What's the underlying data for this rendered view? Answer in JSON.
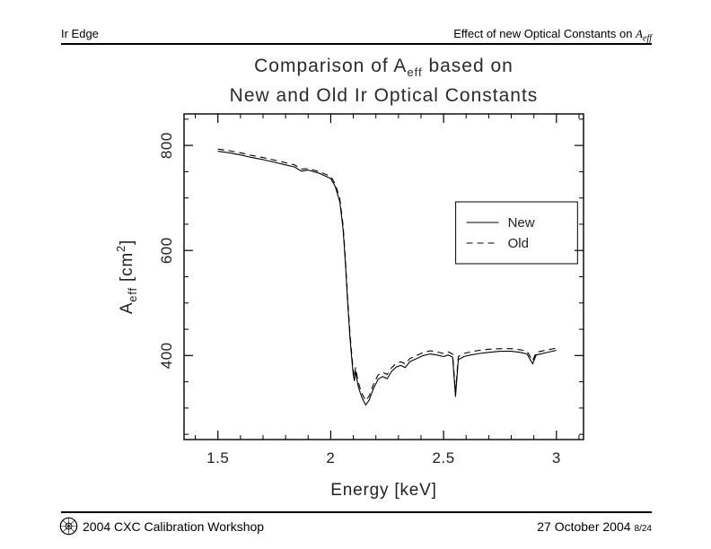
{
  "header": {
    "left": "Ir Edge",
    "right_text": "Effect of new Optical Constants on ",
    "right_math_base": "A",
    "right_math_sub": "eff"
  },
  "title": {
    "line1_pre": "Comparison of A",
    "line1_sub": "eff",
    "line1_post": " based on",
    "line2": "New and Old Ir Optical Constants"
  },
  "footer": {
    "logo_icon": "cxc-logo",
    "left_text": "2004 CXC Calibration Workshop",
    "date": "27 October 2004",
    "page_number": "8/24"
  },
  "chart_data": {
    "type": "line",
    "title": "Comparison of Aeff based on New and Old Ir Optical Constants",
    "xlabel": "Energy [keV]",
    "ylabel": "Aeff [cm2]",
    "ylabel_parts": {
      "base": "A",
      "sub": "eff",
      "mid": " [cm",
      "sup": "2",
      "close": "]"
    },
    "xlim": [
      1.35,
      3.12
    ],
    "ylim": [
      240,
      860
    ],
    "xticks": [
      1.5,
      2,
      2.5,
      3
    ],
    "xtick_labels": [
      "1.5",
      "2",
      "2.5",
      "3"
    ],
    "xminor_step": 0.1,
    "yticks": [
      400,
      600,
      800
    ],
    "ytick_labels": [
      "400",
      "600",
      "800"
    ],
    "yminor_step": 50,
    "grid": false,
    "line_color": "#000000",
    "legend": {
      "position": "upper-right",
      "entries": [
        {
          "label": "New",
          "style": "solid"
        },
        {
          "label": "Old",
          "style": "dashed"
        }
      ]
    },
    "series": [
      {
        "name": "New",
        "style": "solid",
        "points": [
          [
            1.5,
            789
          ],
          [
            1.55,
            786
          ],
          [
            1.6,
            782
          ],
          [
            1.65,
            777
          ],
          [
            1.7,
            773
          ],
          [
            1.75,
            768
          ],
          [
            1.8,
            763
          ],
          [
            1.84,
            759
          ],
          [
            1.87,
            751
          ],
          [
            1.9,
            753
          ],
          [
            1.95,
            747
          ],
          [
            2.0,
            737
          ],
          [
            2.02,
            722
          ],
          [
            2.04,
            693
          ],
          [
            2.055,
            640
          ],
          [
            2.065,
            575
          ],
          [
            2.075,
            500
          ],
          [
            2.085,
            435
          ],
          [
            2.095,
            385
          ],
          [
            2.1,
            362
          ],
          [
            2.105,
            352
          ],
          [
            2.11,
            370
          ],
          [
            2.115,
            358
          ],
          [
            2.12,
            344
          ],
          [
            2.13,
            330
          ],
          [
            2.14,
            318
          ],
          [
            2.155,
            306
          ],
          [
            2.17,
            315
          ],
          [
            2.19,
            338
          ],
          [
            2.21,
            355
          ],
          [
            2.23,
            360
          ],
          [
            2.25,
            356
          ],
          [
            2.27,
            370
          ],
          [
            2.29,
            378
          ],
          [
            2.31,
            381
          ],
          [
            2.33,
            377
          ],
          [
            2.35,
            388
          ],
          [
            2.38,
            394
          ],
          [
            2.41,
            400
          ],
          [
            2.44,
            403
          ],
          [
            2.47,
            401
          ],
          [
            2.5,
            398
          ],
          [
            2.52,
            401
          ],
          [
            2.54,
            397
          ],
          [
            2.553,
            322
          ],
          [
            2.565,
            392
          ],
          [
            2.59,
            398
          ],
          [
            2.62,
            401
          ],
          [
            2.66,
            404
          ],
          [
            2.7,
            406
          ],
          [
            2.75,
            408
          ],
          [
            2.8,
            408
          ],
          [
            2.84,
            406
          ],
          [
            2.87,
            403
          ],
          [
            2.895,
            384
          ],
          [
            2.91,
            401
          ],
          [
            2.95,
            405
          ],
          [
            3.0,
            410
          ]
        ]
      },
      {
        "name": "Old",
        "style": "dashed",
        "points": [
          [
            1.5,
            793
          ],
          [
            1.55,
            790
          ],
          [
            1.6,
            786
          ],
          [
            1.65,
            781
          ],
          [
            1.7,
            777
          ],
          [
            1.75,
            772
          ],
          [
            1.8,
            767
          ],
          [
            1.84,
            763
          ],
          [
            1.87,
            755
          ],
          [
            1.9,
            756
          ],
          [
            1.95,
            750
          ],
          [
            2.0,
            741
          ],
          [
            2.02,
            727
          ],
          [
            2.04,
            699
          ],
          [
            2.055,
            647
          ],
          [
            2.065,
            583
          ],
          [
            2.075,
            508
          ],
          [
            2.085,
            443
          ],
          [
            2.095,
            393
          ],
          [
            2.1,
            370
          ],
          [
            2.105,
            360
          ],
          [
            2.11,
            377
          ],
          [
            2.115,
            366
          ],
          [
            2.12,
            352
          ],
          [
            2.13,
            338
          ],
          [
            2.14,
            326
          ],
          [
            2.155,
            314
          ],
          [
            2.17,
            323
          ],
          [
            2.19,
            346
          ],
          [
            2.21,
            363
          ],
          [
            2.23,
            368
          ],
          [
            2.25,
            364
          ],
          [
            2.27,
            377
          ],
          [
            2.29,
            385
          ],
          [
            2.31,
            388
          ],
          [
            2.33,
            384
          ],
          [
            2.35,
            394
          ],
          [
            2.38,
            400
          ],
          [
            2.41,
            406
          ],
          [
            2.44,
            409
          ],
          [
            2.47,
            407
          ],
          [
            2.5,
            404
          ],
          [
            2.52,
            407
          ],
          [
            2.54,
            403
          ],
          [
            2.553,
            330
          ],
          [
            2.565,
            398
          ],
          [
            2.59,
            404
          ],
          [
            2.62,
            407
          ],
          [
            2.66,
            410
          ],
          [
            2.7,
            412
          ],
          [
            2.75,
            413
          ],
          [
            2.8,
            413
          ],
          [
            2.84,
            411
          ],
          [
            2.87,
            408
          ],
          [
            2.895,
            390
          ],
          [
            2.91,
            406
          ],
          [
            2.95,
            410
          ],
          [
            3.0,
            414
          ]
        ]
      }
    ]
  }
}
